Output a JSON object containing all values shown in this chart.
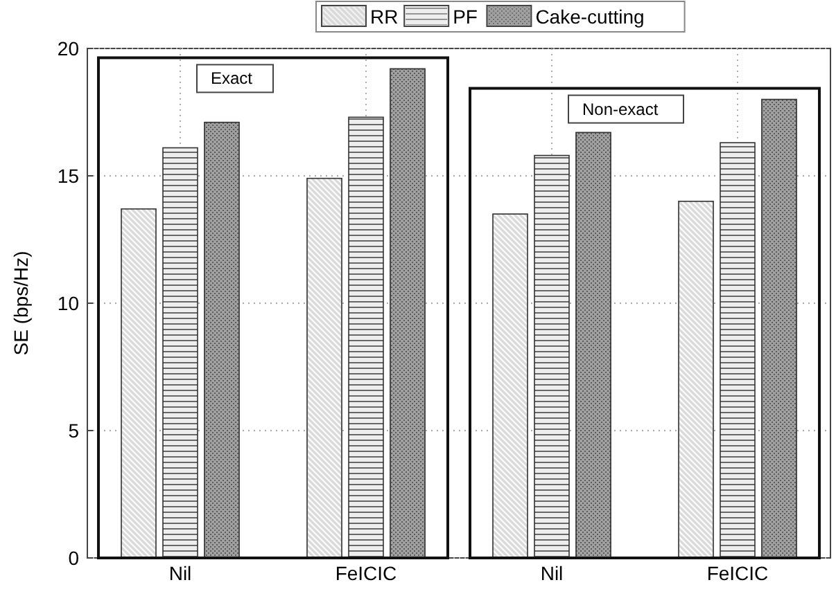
{
  "chart_data": {
    "type": "bar",
    "ylabel": "SE (bps/Hz)",
    "categories": [
      "Nil",
      "FeICIC",
      "Nil",
      "FeICIC"
    ],
    "series": [
      {
        "name": "RR",
        "color": "#d9d9d9",
        "values": [
          13.7,
          14.9,
          13.5,
          14.0
        ]
      },
      {
        "name": "PF",
        "color": "#eeeeee",
        "values": [
          16.1,
          17.3,
          15.8,
          16.3
        ]
      },
      {
        "name": "Cake-cutting",
        "color": "#a0a0a0",
        "values": [
          17.1,
          19.2,
          16.7,
          18.0
        ]
      }
    ],
    "ylim": [
      0,
      20
    ],
    "yticks": [
      0,
      5,
      10,
      15,
      20
    ],
    "grid": true,
    "legend": "top",
    "annotations": [
      "Exact",
      "Non-exact"
    ]
  }
}
